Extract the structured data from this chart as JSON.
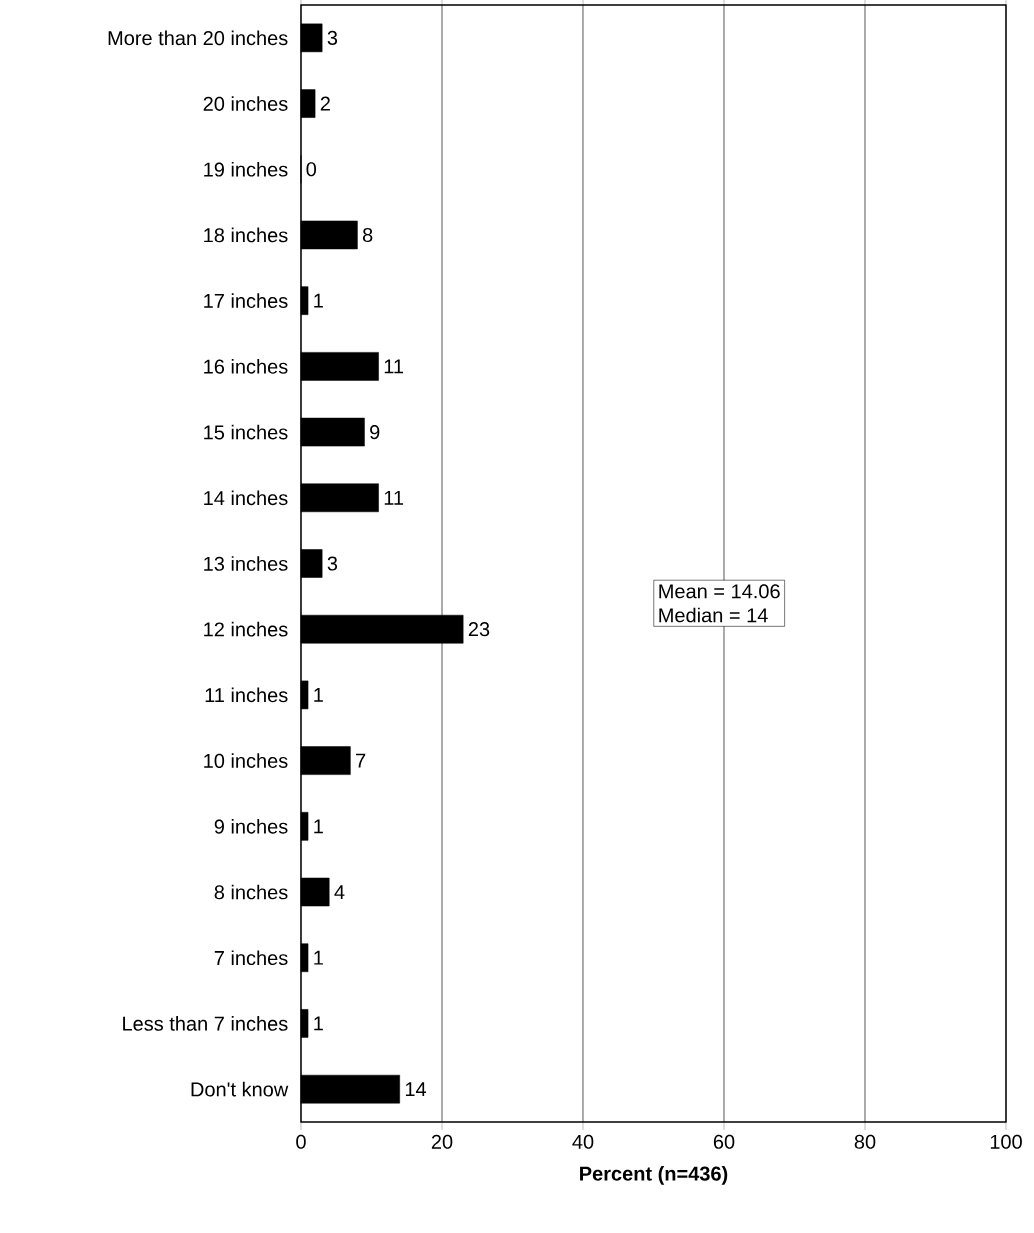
{
  "chart_data": {
    "type": "bar",
    "orientation": "horizontal",
    "xlabel": "Percent (n=436)",
    "categories": [
      "More than 20 inches",
      "20 inches",
      "19 inches",
      "18 inches",
      "17 inches",
      "16 inches",
      "15 inches",
      "14 inches",
      "13 inches",
      "12 inches",
      "11 inches",
      "10 inches",
      "9 inches",
      "8 inches",
      "7 inches",
      "Less than 7 inches",
      "Don't know"
    ],
    "values": [
      3,
      2,
      0,
      8,
      1,
      11,
      9,
      11,
      3,
      23,
      1,
      7,
      1,
      4,
      1,
      1,
      14
    ],
    "color": "#000000",
    "xlim": [
      0,
      100
    ],
    "xticks": [
      0,
      20,
      40,
      60,
      80,
      100
    ],
    "grid": "x",
    "data_labels": true,
    "annotations": [
      "Mean = 14.06",
      "Median = 14"
    ]
  }
}
